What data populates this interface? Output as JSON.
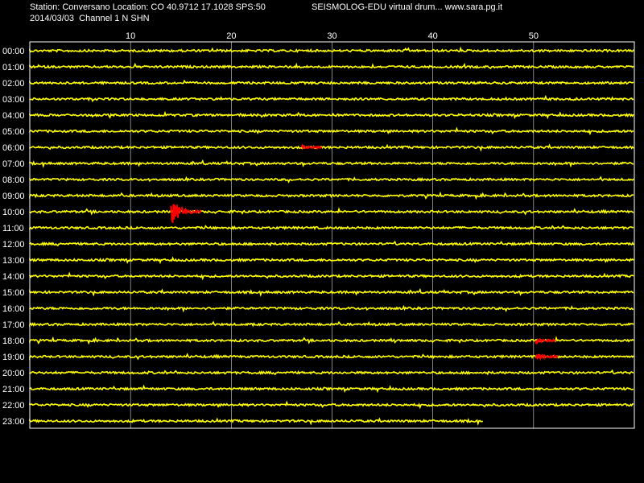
{
  "header": {
    "station_line": "Station: Conversano Location: CO 40.9712 17.1028 SPS:50",
    "date_line": "2014/03/03  Channel 1 N SHN",
    "brand_line": "SEISMOLOG-EDU virtual drum... www.sara.pg.it"
  },
  "colors": {
    "background": "#000000",
    "trace": "#ffff00",
    "event": "#ff0000",
    "grid": "#ffffff"
  },
  "chart_data": {
    "type": "line",
    "title": "",
    "xlabel": "",
    "ylabel": "",
    "x_unit_minutes_range": [
      0,
      60
    ],
    "x_ticks": [
      10,
      20,
      30,
      40,
      50
    ],
    "x_tick_labels": [
      "10",
      "20",
      "30",
      "40",
      "50"
    ],
    "rows": [
      "00:00",
      "01:00",
      "02:00",
      "03:00",
      "04:00",
      "05:00",
      "06:00",
      "07:00",
      "08:00",
      "09:00",
      "10:00",
      "11:00",
      "12:00",
      "13:00",
      "14:00",
      "15:00",
      "16:00",
      "17:00",
      "18:00",
      "19:00",
      "20:00",
      "21:00",
      "22:00",
      "23:00"
    ],
    "last_row_end_minute": 45,
    "grid": true,
    "events": [
      {
        "row": "06:00",
        "start_min": 27,
        "end_min": 29,
        "amplitude": 3
      },
      {
        "row": "10:00",
        "start_min": 14,
        "end_min": 17,
        "amplitude": 18
      },
      {
        "row": "18:00",
        "start_min": 50.2,
        "end_min": 52.2,
        "amplitude": 5
      },
      {
        "row": "19:00",
        "start_min": 50.2,
        "end_min": 52.5,
        "amplitude": 5
      }
    ]
  }
}
